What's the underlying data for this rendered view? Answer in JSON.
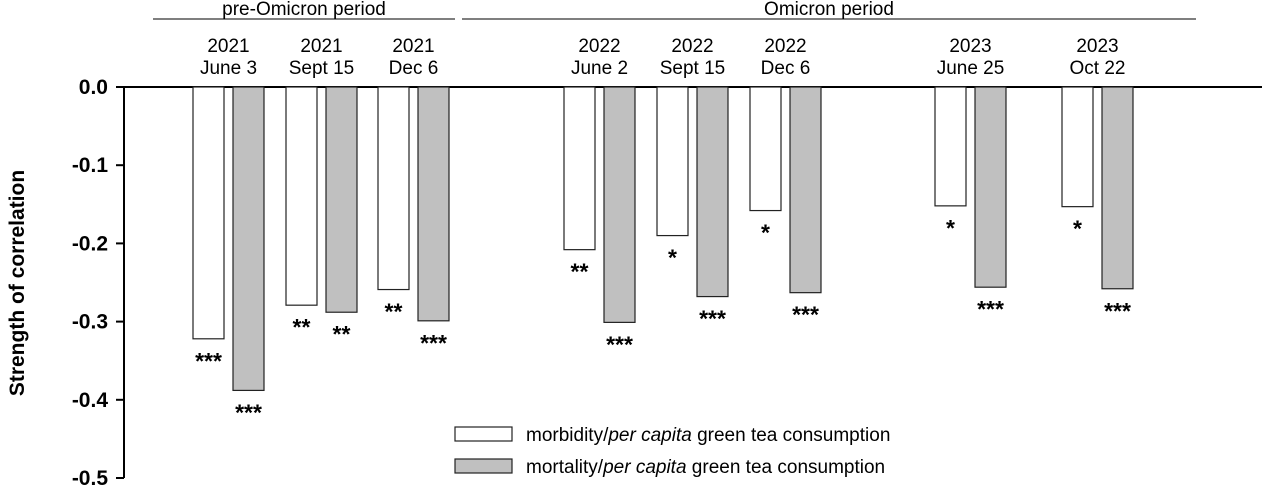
{
  "chart_data": {
    "type": "bar",
    "ylabel": "Strength of correlation",
    "ylim": [
      -0.5,
      0.0
    ],
    "yticks": [
      "0.0",
      "-0.1",
      "-0.2",
      "-0.3",
      "-0.4",
      "-0.5"
    ],
    "grid": false,
    "legend_position": "bottom-right",
    "periods": [
      {
        "label": "pre-Omicron period",
        "categories": [
          0,
          2
        ]
      },
      {
        "label": "Omicron period",
        "categories": [
          3,
          7
        ]
      }
    ],
    "categories": [
      {
        "year": "2021",
        "date": "June 3"
      },
      {
        "year": "2021",
        "date": "Sept 15"
      },
      {
        "year": "2021",
        "date": "Dec 6"
      },
      {
        "year": "2022",
        "date": "June 2"
      },
      {
        "year": "2022",
        "date": "Sept 15"
      },
      {
        "year": "2022",
        "date": "Dec 6"
      },
      {
        "year": "2023",
        "date": "June 25"
      },
      {
        "year": "2023",
        "date": "Oct 22"
      }
    ],
    "series": [
      {
        "name": "morbidity/per capita green tea consumption",
        "name_parts": [
          "morbidity/",
          "per capita",
          " green tea consumption"
        ],
        "color": "#ffffff",
        "values": [
          -0.322,
          -0.279,
          -0.259,
          -0.208,
          -0.19,
          -0.158,
          -0.152,
          -0.153
        ],
        "significance": [
          "***",
          "**",
          "**",
          "**",
          "*",
          "*",
          "*",
          "*"
        ]
      },
      {
        "name": "mortality/per capita green tea consumption",
        "name_parts": [
          "mortality/",
          "per capita",
          " green tea consumption"
        ],
        "color": "#c0c0c0",
        "values": [
          -0.388,
          -0.288,
          -0.299,
          -0.301,
          -0.268,
          -0.263,
          -0.256,
          -0.258
        ],
        "significance": [
          "***",
          "**",
          "***",
          "***",
          "***",
          "***",
          "***",
          "***"
        ]
      }
    ]
  }
}
